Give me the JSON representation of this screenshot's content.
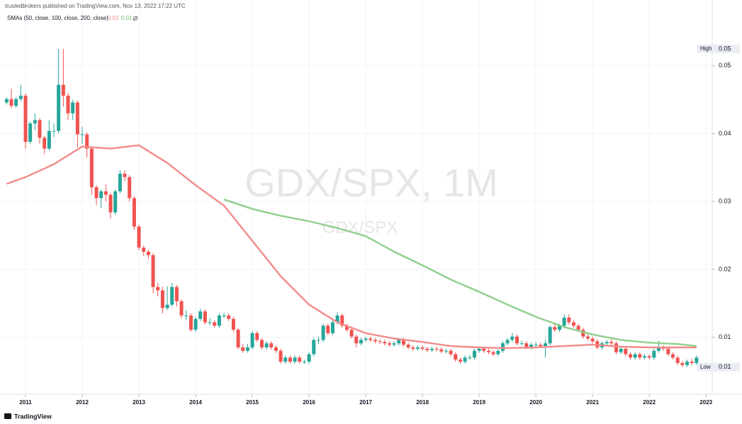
{
  "chart_data": {
    "type": "candlestick",
    "header": "trustedbrokers published on TradingView.com, Nov 13, 2022 17:22 UTC",
    "watermark": "GDX/SPX, 1M",
    "watermark_symbol": "GDX/SPX",
    "footer": "TradingView",
    "up_color": "#26a69a",
    "down_color": "#ef5350",
    "grid": true,
    "xlim": [
      2010.55,
      2023.11
    ],
    "xticks": [
      2011,
      2012,
      2013,
      2014,
      2015,
      2016,
      2017,
      2018,
      2019,
      2020,
      2021,
      2022,
      2023
    ],
    "ylim": [
      0.0016,
      0.0597
    ],
    "yticks": [
      0.01,
      0.02,
      0.03,
      0.04,
      0.05
    ],
    "high_marker": {
      "text": "High",
      "value": 0.0525,
      "label": "0.05"
    },
    "low_marker": {
      "text": "Low",
      "value": 0.0056,
      "label": "0.01"
    },
    "x": [
      2010.667,
      2010.75,
      2010.833,
      2010.917,
      2011,
      2011.083,
      2011.167,
      2011.25,
      2011.333,
      2011.417,
      2011.5,
      2011.583,
      2011.667,
      2011.75,
      2011.833,
      2011.917,
      2012,
      2012.083,
      2012.167,
      2012.25,
      2012.333,
      2012.417,
      2012.5,
      2012.583,
      2012.667,
      2012.75,
      2012.833,
      2012.917,
      2013,
      2013.083,
      2013.167,
      2013.25,
      2013.333,
      2013.417,
      2013.5,
      2013.583,
      2013.667,
      2013.75,
      2013.833,
      2013.917,
      2014,
      2014.083,
      2014.167,
      2014.25,
      2014.333,
      2014.417,
      2014.5,
      2014.583,
      2014.667,
      2014.75,
      2014.833,
      2014.917,
      2015,
      2015.083,
      2015.167,
      2015.25,
      2015.333,
      2015.417,
      2015.5,
      2015.583,
      2015.667,
      2015.75,
      2015.833,
      2015.917,
      2016,
      2016.083,
      2016.167,
      2016.25,
      2016.333,
      2016.417,
      2016.5,
      2016.583,
      2016.667,
      2016.75,
      2016.833,
      2016.917,
      2017,
      2017.083,
      2017.167,
      2017.25,
      2017.333,
      2017.417,
      2017.5,
      2017.583,
      2017.667,
      2017.75,
      2017.833,
      2017.917,
      2018,
      2018.083,
      2018.167,
      2018.25,
      2018.333,
      2018.417,
      2018.5,
      2018.583,
      2018.667,
      2018.75,
      2018.833,
      2018.917,
      2019,
      2019.083,
      2019.167,
      2019.25,
      2019.333,
      2019.417,
      2019.5,
      2019.583,
      2019.667,
      2019.75,
      2019.833,
      2019.917,
      2020,
      2020.083,
      2020.167,
      2020.25,
      2020.333,
      2020.417,
      2020.5,
      2020.583,
      2020.667,
      2020.75,
      2020.833,
      2020.917,
      2021,
      2021.083,
      2021.167,
      2021.25,
      2021.333,
      2021.417,
      2021.5,
      2021.583,
      2021.667,
      2021.75,
      2021.833,
      2021.917,
      2022,
      2022.083,
      2022.167,
      2022.25,
      2022.333,
      2022.417,
      2022.5,
      2022.583,
      2022.667,
      2022.75,
      2022.833
    ],
    "open": [
      0.0446,
      0.0451,
      0.0441,
      0.0451,
      0.0456,
      0.0388,
      0.0415,
      0.042,
      0.0394,
      0.0378,
      0.0404,
      0.0404,
      0.0472,
      0.0456,
      0.043,
      0.0446,
      0.0399,
      0.0399,
      0.0378,
      0.0321,
      0.0305,
      0.0315,
      0.031,
      0.0284,
      0.0315,
      0.0341,
      0.0336,
      0.0305,
      0.0263,
      0.0232,
      0.0226,
      0.0221,
      0.0174,
      0.0169,
      0.0143,
      0.0148,
      0.0174,
      0.0153,
      0.0132,
      0.0132,
      0.0111,
      0.0127,
      0.0138,
      0.0122,
      0.0122,
      0.0117,
      0.0132,
      0.0132,
      0.0127,
      0.0111,
      0.0085,
      0.008,
      0.0085,
      0.0106,
      0.0096,
      0.0085,
      0.0091,
      0.0085,
      0.008,
      0.0064,
      0.007,
      0.0064,
      0.007,
      0.0064,
      0.0064,
      0.0075,
      0.0096,
      0.0096,
      0.0117,
      0.0106,
      0.0122,
      0.0132,
      0.0117,
      0.0111,
      0.0101,
      0.0091,
      0.0096,
      0.0098,
      0.0096,
      0.0094,
      0.0093,
      0.0091,
      0.0089,
      0.0091,
      0.0096,
      0.0089,
      0.0085,
      0.0083,
      0.0085,
      0.0083,
      0.0081,
      0.0083,
      0.0082,
      0.0079,
      0.008,
      0.0075,
      0.0067,
      0.0064,
      0.007,
      0.007,
      0.008,
      0.0083,
      0.008,
      0.0078,
      0.0075,
      0.008,
      0.0091,
      0.0096,
      0.0101,
      0.0091,
      0.0091,
      0.0085,
      0.0089,
      0.0089,
      0.0087,
      0.0091,
      0.0115,
      0.0111,
      0.0117,
      0.0129,
      0.0122,
      0.0117,
      0.0111,
      0.0101,
      0.0098,
      0.0094,
      0.0085,
      0.0091,
      0.0093,
      0.0091,
      0.0078,
      0.0083,
      0.0075,
      0.007,
      0.0075,
      0.007,
      0.0072,
      0.007,
      0.008,
      0.0085,
      0.0083,
      0.0075,
      0.007,
      0.0062,
      0.0059,
      0.0064,
      0.0062
    ],
    "high": [
      0.0454,
      0.0466,
      0.0454,
      0.0472,
      0.0459,
      0.0418,
      0.043,
      0.0423,
      0.0397,
      0.042,
      0.0415,
      0.0525,
      0.0525,
      0.046,
      0.045,
      0.0449,
      0.041,
      0.0402,
      0.0381,
      0.0324,
      0.0318,
      0.0325,
      0.0313,
      0.0318,
      0.0346,
      0.0346,
      0.0339,
      0.0308,
      0.0266,
      0.0235,
      0.0229,
      0.0224,
      0.018,
      0.0175,
      0.0175,
      0.018,
      0.0177,
      0.0156,
      0.014,
      0.0135,
      0.013,
      0.0142,
      0.0141,
      0.0128,
      0.0125,
      0.0135,
      0.0136,
      0.0135,
      0.013,
      0.0114,
      0.009,
      0.009,
      0.0109,
      0.0109,
      0.0099,
      0.0094,
      0.0094,
      0.0088,
      0.0083,
      0.0073,
      0.0073,
      0.0073,
      0.0073,
      0.0067,
      0.0078,
      0.0099,
      0.0101,
      0.012,
      0.012,
      0.0125,
      0.0137,
      0.0135,
      0.012,
      0.0114,
      0.0104,
      0.0099,
      0.0101,
      0.0101,
      0.0099,
      0.0097,
      0.0096,
      0.0094,
      0.0094,
      0.0099,
      0.0099,
      0.0092,
      0.0088,
      0.0088,
      0.0088,
      0.0086,
      0.0086,
      0.0086,
      0.0085,
      0.0083,
      0.0083,
      0.0078,
      0.007,
      0.0073,
      0.0074,
      0.0083,
      0.0086,
      0.0086,
      0.0083,
      0.0081,
      0.0083,
      0.0094,
      0.0099,
      0.0106,
      0.0104,
      0.0095,
      0.0094,
      0.0092,
      0.0093,
      0.0092,
      0.0096,
      0.0118,
      0.012,
      0.012,
      0.0134,
      0.0134,
      0.0125,
      0.012,
      0.0114,
      0.0104,
      0.0101,
      0.0097,
      0.0094,
      0.0096,
      0.0098,
      0.0094,
      0.0086,
      0.0086,
      0.0078,
      0.0078,
      0.0078,
      0.0075,
      0.0075,
      0.0083,
      0.0095,
      0.0088,
      0.0086,
      0.0078,
      0.0073,
      0.0065,
      0.0067,
      0.0068,
      0.0073
    ],
    "low": [
      0.0443,
      0.0438,
      0.0438,
      0.0448,
      0.0378,
      0.0385,
      0.0405,
      0.0385,
      0.037,
      0.0375,
      0.0395,
      0.04,
      0.044,
      0.042,
      0.042,
      0.038,
      0.0385,
      0.0365,
      0.031,
      0.0295,
      0.029,
      0.03,
      0.0275,
      0.028,
      0.0312,
      0.033,
      0.03,
      0.0258,
      0.0228,
      0.022,
      0.0215,
      0.0165,
      0.016,
      0.0135,
      0.014,
      0.0145,
      0.0145,
      0.0128,
      0.0125,
      0.0108,
      0.0108,
      0.0124,
      0.0119,
      0.0118,
      0.0114,
      0.0114,
      0.0128,
      0.0124,
      0.0108,
      0.0082,
      0.0077,
      0.0077,
      0.0082,
      0.0093,
      0.0082,
      0.0082,
      0.0082,
      0.0077,
      0.0061,
      0.0061,
      0.0061,
      0.0061,
      0.0061,
      0.0061,
      0.0061,
      0.0072,
      0.009,
      0.0093,
      0.0103,
      0.0103,
      0.0119,
      0.0114,
      0.0108,
      0.0098,
      0.0085,
      0.0088,
      0.0093,
      0.0093,
      0.0091,
      0.009,
      0.0088,
      0.0086,
      0.0086,
      0.0088,
      0.0086,
      0.0082,
      0.008,
      0.008,
      0.008,
      0.0078,
      0.0078,
      0.0079,
      0.0076,
      0.0076,
      0.0072,
      0.0064,
      0.0061,
      0.0061,
      0.0067,
      0.0067,
      0.0077,
      0.0077,
      0.0075,
      0.0072,
      0.0072,
      0.0077,
      0.0088,
      0.0093,
      0.0088,
      0.0088,
      0.0082,
      0.0082,
      0.0085,
      0.0084,
      0.007,
      0.0088,
      0.0108,
      0.0108,
      0.0114,
      0.0119,
      0.0114,
      0.0108,
      0.0098,
      0.0095,
      0.0091,
      0.0082,
      0.0082,
      0.0088,
      0.0088,
      0.0075,
      0.0075,
      0.0072,
      0.0067,
      0.0067,
      0.0067,
      0.0067,
      0.0067,
      0.0067,
      0.0077,
      0.008,
      0.0072,
      0.0067,
      0.0059,
      0.0056,
      0.0056,
      0.0059,
      0.0059
    ],
    "close": [
      0.0451,
      0.0441,
      0.0451,
      0.0456,
      0.0388,
      0.0415,
      0.042,
      0.0394,
      0.0378,
      0.0404,
      0.0404,
      0.0472,
      0.0456,
      0.043,
      0.0446,
      0.0399,
      0.0399,
      0.0378,
      0.0321,
      0.0305,
      0.0315,
      0.031,
      0.0284,
      0.0315,
      0.0341,
      0.0336,
      0.0305,
      0.0263,
      0.0232,
      0.0226,
      0.0221,
      0.0174,
      0.0169,
      0.0143,
      0.0148,
      0.0174,
      0.0153,
      0.0132,
      0.0132,
      0.0111,
      0.0127,
      0.0138,
      0.0122,
      0.0122,
      0.0117,
      0.0132,
      0.0132,
      0.0127,
      0.0111,
      0.0085,
      0.008,
      0.0085,
      0.0106,
      0.0096,
      0.0085,
      0.0091,
      0.0085,
      0.008,
      0.0064,
      0.007,
      0.0064,
      0.007,
      0.0064,
      0.0064,
      0.0075,
      0.0096,
      0.0096,
      0.0117,
      0.0106,
      0.0122,
      0.0132,
      0.0117,
      0.0111,
      0.0101,
      0.0091,
      0.0096,
      0.0098,
      0.0096,
      0.0094,
      0.0093,
      0.0091,
      0.0089,
      0.0091,
      0.0096,
      0.0089,
      0.0085,
      0.0083,
      0.0085,
      0.0083,
      0.0081,
      0.0083,
      0.0082,
      0.0079,
      0.008,
      0.0075,
      0.0067,
      0.0064,
      0.007,
      0.007,
      0.008,
      0.0083,
      0.008,
      0.0078,
      0.0075,
      0.008,
      0.0091,
      0.0096,
      0.0101,
      0.0091,
      0.0091,
      0.0085,
      0.0089,
      0.0089,
      0.0087,
      0.0091,
      0.0115,
      0.0111,
      0.0117,
      0.0129,
      0.0122,
      0.0117,
      0.0111,
      0.0101,
      0.0098,
      0.0094,
      0.0085,
      0.0091,
      0.0093,
      0.0091,
      0.0078,
      0.0083,
      0.0075,
      0.007,
      0.0075,
      0.007,
      0.0072,
      0.007,
      0.008,
      0.0085,
      0.0083,
      0.0075,
      0.007,
      0.0062,
      0.0059,
      0.0064,
      0.0062,
      0.007
    ],
    "sma": {
      "legend": "SMAs (50, close, 100, close, 200, close)",
      "lines": [
        {
          "color": "#f28b8b",
          "last_label": "0.01",
          "x": [
            2010.667,
            2011,
            2011.5,
            2012,
            2012.5,
            2013,
            2013.5,
            2014,
            2014.5,
            2015,
            2015.5,
            2016,
            2016.5,
            2017,
            2017.5,
            2018,
            2018.5,
            2019,
            2019.5,
            2020,
            2020.5,
            2021,
            2021.5,
            2022,
            2022.5,
            2022.833
          ],
          "values": [
            0.0326,
            0.0336,
            0.0355,
            0.0381,
            0.0378,
            0.0383,
            0.0357,
            0.0324,
            0.0294,
            0.0242,
            0.019,
            0.0148,
            0.0122,
            0.0106,
            0.0098,
            0.0093,
            0.0087,
            0.0085,
            0.0084,
            0.0085,
            0.0087,
            0.0089,
            0.0086,
            0.0085,
            0.0085,
            0.0085
          ]
        },
        {
          "color": "#8fcf8a",
          "last_label": "0.01",
          "x": [
            2014.5,
            2015,
            2015.5,
            2016,
            2016.5,
            2017,
            2017.5,
            2018,
            2018.5,
            2019,
            2019.5,
            2020,
            2020.5,
            2021,
            2021.5,
            2022,
            2022.5,
            2022.833
          ],
          "values": [
            0.0303,
            0.0289,
            0.0279,
            0.0271,
            0.0261,
            0.0249,
            0.0226,
            0.0206,
            0.0185,
            0.0167,
            0.0148,
            0.013,
            0.0115,
            0.0104,
            0.0096,
            0.0092,
            0.009,
            0.0087
          ]
        }
      ]
    }
  }
}
